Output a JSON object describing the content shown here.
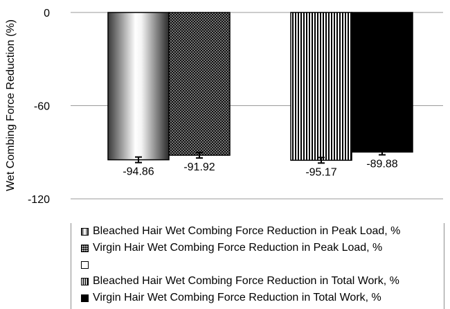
{
  "chart_data": {
    "type": "bar",
    "ylabel": "Wet Combing Force Reduction (%)",
    "ylim": [
      -120,
      0
    ],
    "yticks": [
      0,
      -60,
      -120
    ],
    "grid": true,
    "legend_position": "bottom",
    "series": [
      {
        "name": "Bleached Hair Wet Combing Force Reduction in Peak Load, %",
        "group": 0,
        "value": -94.86,
        "label": "-94.86",
        "pattern": "gradient"
      },
      {
        "name": "Virgin Hair Wet Combing Force Reduction in Peak Load, %",
        "group": 0,
        "value": -91.92,
        "label": "-91.92",
        "pattern": "dots"
      },
      {
        "name": "Bleached Hair Wet Combing Force Reduction in Total Work, %",
        "group": 1,
        "value": -95.17,
        "label": "-95.17",
        "pattern": "stripes"
      },
      {
        "name": "Virgin Hair Wet Combing Force Reduction in Total Work, %",
        "group": 1,
        "value": -89.88,
        "label": "-89.88",
        "pattern": "solid"
      }
    ],
    "legend": [
      {
        "label": "Bleached Hair Wet Combing Force Reduction in Peak Load, %",
        "swatch": "gradient"
      },
      {
        "label": "Virgin Hair Wet Combing Force Reduction in Peak Load, %",
        "swatch": "dots"
      },
      {
        "label": "",
        "swatch": "empty"
      },
      {
        "label": "Bleached Hair Wet Combing Force Reduction in Total Work, %",
        "swatch": "stripes"
      },
      {
        "label": "Virgin Hair Wet Combing Force Reduction in Total Work, %",
        "swatch": "solid"
      }
    ],
    "error_bars": true
  }
}
